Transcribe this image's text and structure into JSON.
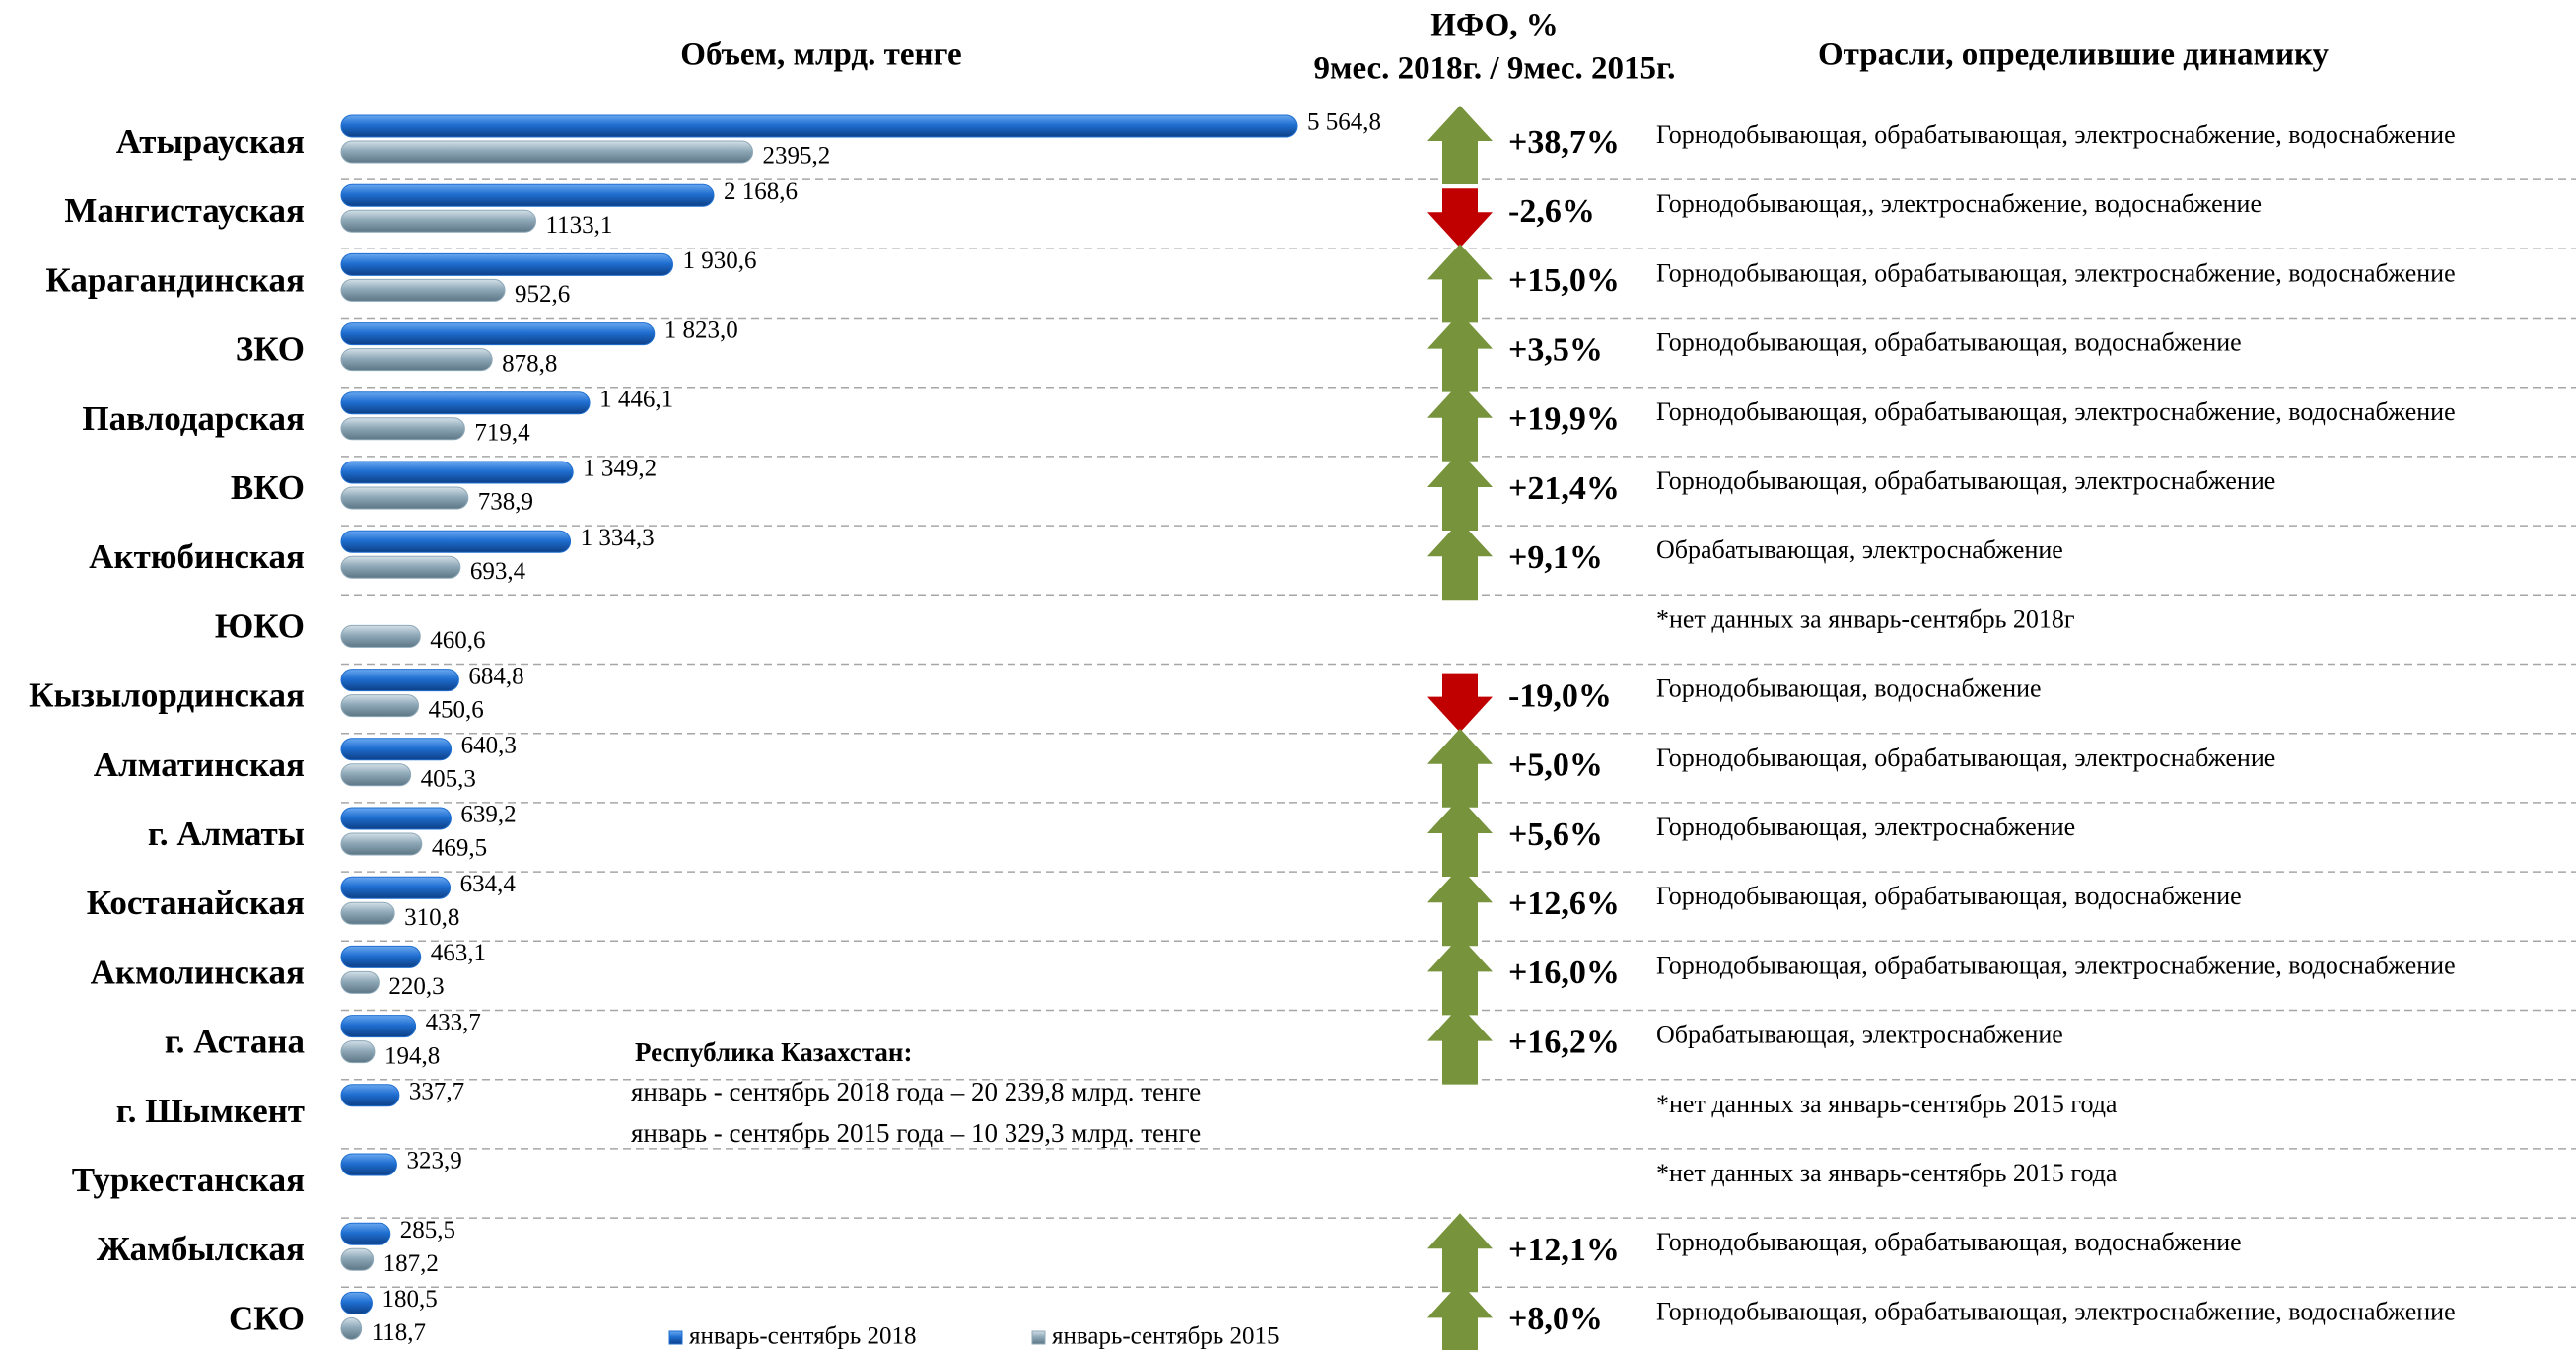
{
  "chart_data": {
    "type": "bar",
    "title": "Объем, млрд. тенге",
    "categories": [
      "Атырауская",
      "Мангистауская",
      "Карагандинская",
      "ЗКО",
      "Павлодарская",
      "ВКО",
      "Актюбинская",
      "ЮКО",
      "Кызылординская",
      "Алматинская",
      "г. Алматы",
      "Костанайская",
      "Акмолинская",
      "г. Астана",
      "г. Шымкент",
      "Туркестанская",
      "Жамбылская",
      "СКО"
    ],
    "series": [
      {
        "name": "январь-сентябрь 2018",
        "color": "#1f6fd1",
        "values": [
          5564.8,
          2168.6,
          1930.6,
          1823.0,
          1446.1,
          1349.2,
          1334.3,
          null,
          684.8,
          640.3,
          639.2,
          634.4,
          463.1,
          433.7,
          337.7,
          323.9,
          285.5,
          180.5
        ],
        "value_labels": [
          "5 564,8",
          "2 168,6",
          "1 930,6",
          "1 823,0",
          "1 446,1",
          "1 349,2",
          "1 334,3",
          null,
          "684,8",
          "640,3",
          "639,2",
          "634,4",
          "463,1",
          "433,7",
          "337,7",
          "323,9",
          "285,5",
          "180,5"
        ]
      },
      {
        "name": "январь-сентябрь 2015",
        "color": "#8fa9b8",
        "values": [
          2395.2,
          1133.1,
          952.6,
          878.8,
          719.4,
          738.9,
          693.4,
          460.6,
          450.6,
          405.3,
          469.5,
          310.8,
          220.3,
          194.8,
          null,
          null,
          187.2,
          118.7
        ],
        "value_labels": [
          "2395,2",
          "1133,1",
          "952,6",
          "878,8",
          "719,4",
          "738,9",
          "693,4",
          "460,6",
          "450,6",
          "405,3",
          "469,5",
          "310,8",
          "220,3",
          "194,8",
          null,
          null,
          "187,2",
          "118,7"
        ]
      }
    ],
    "ifo": {
      "title": "ИФО, %",
      "subtitle": "9мес. 2018г. / 9мес. 2015г.",
      "up_color": "#77933c",
      "down_color": "#c00000",
      "values": [
        38.7,
        -2.6,
        15.0,
        3.5,
        19.9,
        21.4,
        9.1,
        null,
        -19.0,
        5.0,
        5.6,
        12.6,
        16.0,
        16.2,
        null,
        null,
        12.1,
        8.0
      ],
      "value_labels": [
        "+38,7%",
        "-2,6%",
        "+15,0%",
        "+3,5%",
        "+19,9%",
        "+21,4%",
        "+9,1%",
        null,
        "-19,0%",
        "+5,0%",
        "+5,6%",
        "+12,6%",
        "+16,0%",
        "+16,2%",
        null,
        null,
        "+12,1%",
        "+8,0%"
      ]
    },
    "industries": {
      "title": "Отрасли, определившие динамику",
      "values": [
        "Горнодобывающая, обрабатывающая, электроснабжение, водоснабжение",
        "Горнодобывающая,, электроснабжение, водоснабжение",
        "Горнодобывающая, обрабатывающая, электроснабжение, водоснабжение",
        "Горнодобывающая, обрабатывающая, водоснабжение",
        "Горнодобывающая, обрабатывающая, электроснабжение, водоснабжение",
        "Горнодобывающая, обрабатывающая, электроснабжение",
        "Обрабатывающая, электроснабжение",
        "*нет данных за январь-сентябрь 2018г",
        "Горнодобывающая, водоснабжение",
        "Горнодобывающая, обрабатывающая, электроснабжение",
        "Горнодобывающая, электроснабжение",
        "Горнодобывающая, обрабатывающая, водоснабжение",
        "Горнодобывающая, обрабатывающая, электроснабжение, водоснабжение",
        "Обрабатывающая, электроснабжение",
        "*нет данных за январь-сентябрь 2015 года",
        "*нет данных за январь-сентябрь 2015 года",
        "Горнодобывающая, обрабатывающая, водоснабжение",
        "Горнодобывающая, обрабатывающая, электроснабжение, водоснабжение"
      ]
    },
    "annotations": [
      "Республика Казахстан:",
      "январь - сентябрь 2018 года – 20 239,8 млрд. тенге",
      "январь - сентябрь 2015 года – 10 329,3 млрд. тенге"
    ]
  }
}
